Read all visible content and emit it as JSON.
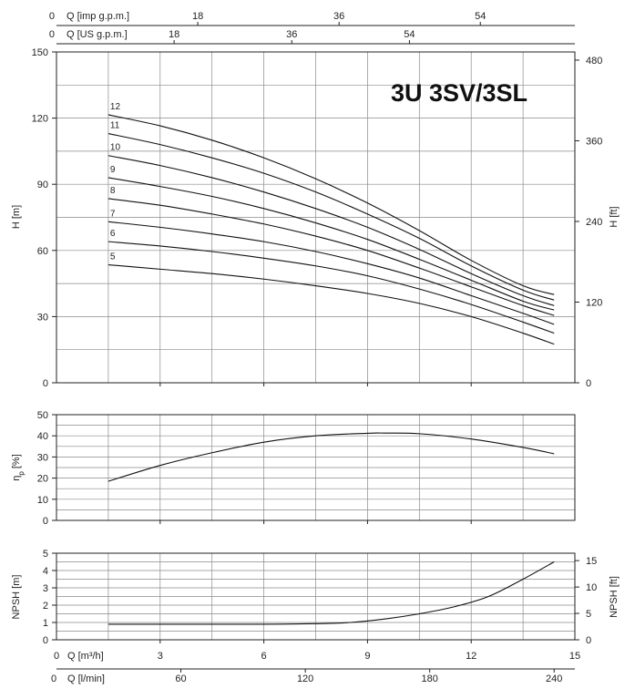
{
  "chart_data": [
    {
      "type": "line",
      "panel": "head",
      "title": "3U 3SV/3SL",
      "xlabel": "Q [m³/h]",
      "ylabel": "H [m]",
      "ylabel_right": "H [ft]",
      "xlim": [
        0,
        15
      ],
      "ylim": [
        0,
        150
      ],
      "yticks": [
        0,
        30,
        60,
        90,
        120,
        150
      ],
      "yticks_right": [
        0,
        120,
        240,
        360,
        480
      ],
      "grid": true,
      "series": [
        {
          "name": "12",
          "x": [
            1.5,
            3,
            4.5,
            6,
            7.5,
            9,
            10.5,
            12,
            13.5,
            14.4
          ],
          "values": [
            121.5,
            116.5,
            110,
            102,
            92.5,
            81.5,
            69,
            55.5,
            44,
            40
          ]
        },
        {
          "name": "11",
          "x": [
            1.5,
            3,
            4.5,
            6,
            7.5,
            9,
            10.5,
            12,
            13.5,
            14.4
          ],
          "values": [
            113,
            108,
            102,
            95,
            86.5,
            76.5,
            65.5,
            53,
            42,
            37.5
          ]
        },
        {
          "name": "10",
          "x": [
            1.5,
            3,
            4.5,
            6,
            7.5,
            9,
            10.5,
            12,
            13.5,
            14.4
          ],
          "values": [
            103,
            98.5,
            93,
            86.5,
            79,
            70.5,
            60.5,
            49.5,
            39.5,
            35
          ]
        },
        {
          "name": "9",
          "x": [
            1.5,
            3,
            4.5,
            6,
            7.5,
            9,
            10.5,
            12,
            13.5,
            14.4
          ],
          "values": [
            93,
            89,
            84.5,
            79,
            72.5,
            65,
            56,
            46.5,
            37,
            33
          ]
        },
        {
          "name": "8",
          "x": [
            1.5,
            3,
            4.5,
            6,
            7.5,
            9,
            10.5,
            12,
            13.5,
            14.4
          ],
          "values": [
            83.5,
            80.5,
            76.5,
            72,
            66.5,
            60,
            52,
            43.5,
            35,
            30.5
          ]
        },
        {
          "name": "7",
          "x": [
            1.5,
            3,
            4.5,
            6,
            7.5,
            9,
            10.5,
            12,
            13.5,
            14.4
          ],
          "values": [
            73,
            70.5,
            67.5,
            64,
            59.5,
            54,
            47.5,
            39.5,
            31.5,
            26.5
          ]
        },
        {
          "name": "6",
          "x": [
            1.5,
            3,
            4.5,
            6,
            7.5,
            9,
            10.5,
            12,
            13.5,
            14.4
          ],
          "values": [
            64,
            62,
            59.5,
            56.5,
            53,
            48.5,
            42.5,
            35.5,
            27.5,
            22.5
          ]
        },
        {
          "name": "5",
          "x": [
            1.5,
            3,
            4.5,
            6,
            7.5,
            9,
            10.5,
            12,
            13.5,
            14.4
          ],
          "values": [
            53.5,
            51.5,
            49.5,
            47,
            44,
            40.5,
            36,
            30,
            22.5,
            17.5
          ]
        }
      ]
    },
    {
      "type": "line",
      "panel": "efficiency",
      "xlabel": "Q [m³/h]",
      "ylabel": "ηp [%]",
      "ylabel_main": "η",
      "ylabel_sub": "p",
      "ylabel_unit": "[%]",
      "xlim": [
        0,
        15
      ],
      "ylim": [
        0,
        50
      ],
      "yticks": [
        0,
        10,
        20,
        30,
        40,
        50
      ],
      "grid": true,
      "series": [
        {
          "x": [
            1.5,
            3,
            4.5,
            6,
            7.5,
            9,
            9.5,
            10.5,
            12,
            13.5,
            14.4
          ],
          "values": [
            18.5,
            26,
            32,
            37,
            40,
            41.2,
            41.3,
            41,
            38.5,
            34.5,
            31.5
          ]
        }
      ]
    },
    {
      "type": "line",
      "panel": "npsh",
      "xlabel": "Q [m³/h]",
      "ylabel": "NPSH [m]",
      "ylabel_right": "NPSH [ft]",
      "xlim": [
        0,
        15
      ],
      "ylim": [
        0,
        5
      ],
      "yticks": [
        0,
        1,
        2,
        3,
        4,
        5
      ],
      "yticks_right": [
        0,
        5,
        10,
        15
      ],
      "grid": true,
      "series": [
        {
          "x": [
            1.5,
            3,
            4.5,
            6,
            7.5,
            8.5,
            9.5,
            10.5,
            11.5,
            12.5,
            13.5,
            14.4
          ],
          "values": [
            0.9,
            0.9,
            0.9,
            0.9,
            0.93,
            1.0,
            1.2,
            1.5,
            1.9,
            2.5,
            3.5,
            4.5
          ]
        }
      ]
    }
  ],
  "axes": {
    "top_imp": {
      "label": "Q [imp g.p.m.]",
      "ticks": [
        "0",
        "18",
        "36",
        "54"
      ],
      "values": [
        0,
        18,
        36,
        54
      ]
    },
    "top_us": {
      "label": "Q [US g.p.m.]",
      "ticks": [
        "0",
        "18",
        "36",
        "54"
      ],
      "values": [
        0,
        18,
        36,
        54
      ]
    },
    "bottom_m3h": {
      "label": "Q [m³/h]",
      "ticks": [
        "0",
        "3",
        "6",
        "9",
        "12",
        "15"
      ],
      "values": [
        0,
        3,
        6,
        9,
        12,
        15
      ]
    },
    "bottom_lmin": {
      "label": "Q [l/min]",
      "ticks": [
        "0",
        "60",
        "120",
        "180",
        "240"
      ],
      "values": [
        0,
        60,
        120,
        180,
        240
      ]
    }
  },
  "colors": {
    "line": "#111111",
    "grid": "#8a8a8a",
    "frame": "#222222",
    "background": "#ffffff"
  }
}
